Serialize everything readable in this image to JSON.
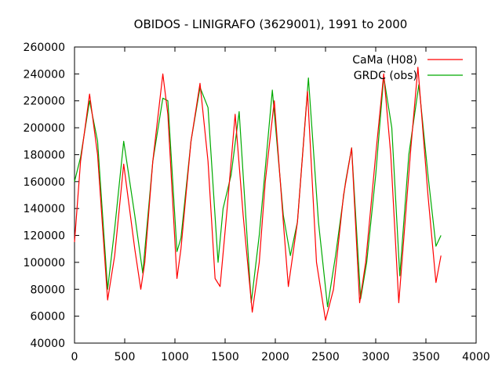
{
  "chart_data": {
    "type": "line",
    "title": "OBIDOS - LINIGRAFO (3629001), 1991 to 2000",
    "xlabel": "",
    "ylabel": "",
    "xlim": [
      0,
      4000
    ],
    "ylim": [
      40000,
      260000
    ],
    "x_ticks": [
      0,
      500,
      1000,
      1500,
      2000,
      2500,
      3000,
      3500,
      4000
    ],
    "y_ticks": [
      40000,
      60000,
      80000,
      100000,
      120000,
      140000,
      160000,
      180000,
      200000,
      220000,
      240000,
      260000
    ],
    "grid": false,
    "legend_position": "top-right",
    "series": [
      {
        "name": "CaMa (H08)",
        "color": "#ff0000",
        "x": [
          0,
          60,
          150,
          230,
          330,
          400,
          490,
          600,
          660,
          700,
          780,
          880,
          930,
          1020,
          1060,
          1160,
          1250,
          1330,
          1400,
          1450,
          1520,
          1600,
          1680,
          1770,
          1840,
          1900,
          1990,
          2080,
          2130,
          2220,
          2320,
          2410,
          2500,
          2580,
          2680,
          2760,
          2840,
          2900,
          3000,
          3080,
          3150,
          3230,
          3350,
          3420,
          3520,
          3600,
          3650
        ],
        "y": [
          115000,
          175000,
          225000,
          180000,
          72000,
          105000,
          173000,
          110000,
          80000,
          100000,
          175000,
          240000,
          210000,
          88000,
          110000,
          190000,
          233000,
          175000,
          88000,
          82000,
          140000,
          210000,
          135000,
          63000,
          100000,
          160000,
          220000,
          130000,
          82000,
          130000,
          227000,
          100000,
          57000,
          80000,
          150000,
          185000,
          70000,
          100000,
          180000,
          240000,
          180000,
          70000,
          185000,
          245000,
          150000,
          85000,
          105000
        ]
      },
      {
        "name": "GRDC (obs)",
        "color": "#00aa00",
        "x": [
          0,
          60,
          150,
          230,
          330,
          400,
          490,
          600,
          680,
          780,
          880,
          930,
          1020,
          1060,
          1160,
          1250,
          1330,
          1430,
          1480,
          1560,
          1640,
          1760,
          1840,
          1970,
          2080,
          2150,
          2220,
          2330,
          2430,
          2520,
          2600,
          2700,
          2760,
          2850,
          2910,
          3000,
          3080,
          3160,
          3240,
          3330,
          3430,
          3520,
          3600,
          3650
        ],
        "y": [
          160000,
          178000,
          220000,
          190000,
          80000,
          125000,
          190000,
          135000,
          92000,
          175000,
          222000,
          220000,
          108000,
          118000,
          190000,
          230000,
          215000,
          100000,
          140000,
          165000,
          212000,
          70000,
          120000,
          228000,
          135000,
          105000,
          130000,
          237000,
          130000,
          67000,
          105000,
          160000,
          185000,
          73000,
          100000,
          165000,
          238000,
          200000,
          90000,
          180000,
          232000,
          165000,
          112000,
          120000
        ]
      }
    ]
  }
}
